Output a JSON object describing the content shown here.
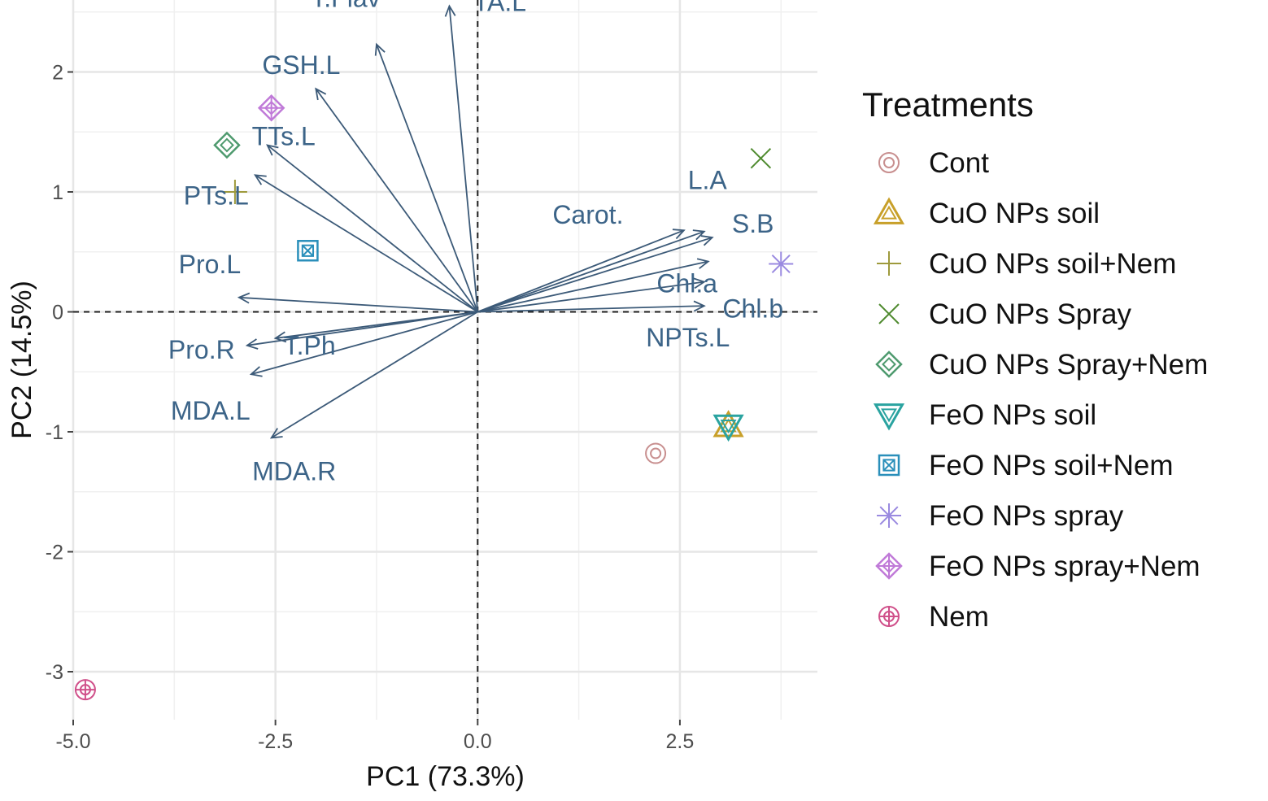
{
  "chart_data": {
    "type": "scatter",
    "subtype": "pca-biplot",
    "xlabel": "PC1 (73.3%)",
    "ylabel": "PC2 (14.5%)",
    "xlim": [
      -5.0,
      4.2
    ],
    "ylim": [
      -3.4,
      2.6
    ],
    "xticks": [
      -5.0,
      -2.5,
      0.0,
      2.5
    ],
    "xtick_labels": [
      "-5.0",
      "-2.5",
      "0.0",
      "2.5"
    ],
    "yticks": [
      -3,
      -2,
      -1,
      0,
      1,
      2
    ],
    "ytick_labels": [
      "-3",
      "-2",
      "-1",
      "0",
      "1",
      "2"
    ],
    "grid": true,
    "legend": {
      "title": "Treatments",
      "position": "right"
    },
    "series": [
      {
        "name": "Cont",
        "marker": "circle-dot",
        "color": "#c88f8f",
        "x": 2.2,
        "y": -1.18
      },
      {
        "name": "CuO NPs soil",
        "marker": "triangle-up",
        "color": "#c8a02a",
        "x": 3.1,
        "y": -0.95
      },
      {
        "name": "CuO NPs soil+Nem",
        "marker": "plus",
        "color": "#9e9a3c",
        "x": -3.0,
        "y": 1.0
      },
      {
        "name": "CuO NPs Spray",
        "marker": "cross",
        "color": "#4e8a2e",
        "x": 3.5,
        "y": 1.28
      },
      {
        "name": "CuO NPs Spray+Nem",
        "marker": "diamond",
        "color": "#4e9a6e",
        "x": -3.1,
        "y": 1.39
      },
      {
        "name": "FeO NPs soil",
        "marker": "triangle-down",
        "color": "#2aa3a0",
        "x": 3.1,
        "y": -0.95
      },
      {
        "name": "FeO NPs soil+Nem",
        "marker": "square-cross",
        "color": "#2a8fba",
        "x": -2.1,
        "y": 0.51
      },
      {
        "name": "FeO NPs spray",
        "marker": "asterisk",
        "color": "#9a8ae0",
        "x": 3.75,
        "y": 0.4
      },
      {
        "name": "FeO NPs spray+Nem",
        "marker": "diamond-plus",
        "color": "#c07ad8",
        "x": -2.55,
        "y": 1.7
      },
      {
        "name": "Nem",
        "marker": "circle-plus",
        "color": "#d0508a",
        "x": -4.85,
        "y": -3.15
      }
    ],
    "loadings": [
      {
        "name": "TA.L",
        "x": -0.35,
        "y": 2.55
      },
      {
        "name": "T.Flav",
        "x": -1.25,
        "y": 2.23
      },
      {
        "name": "GSH.L",
        "x": -2.0,
        "y": 1.86
      },
      {
        "name": "TTs.L",
        "x": -2.6,
        "y": 1.39
      },
      {
        "name": "PTs.L",
        "x": -2.75,
        "y": 1.14
      },
      {
        "name": "Pro.L",
        "x": -2.95,
        "y": 0.12
      },
      {
        "name": "T.Ph",
        "x": -2.5,
        "y": -0.22
      },
      {
        "name": "Pro.R",
        "x": -2.85,
        "y": -0.28
      },
      {
        "name": "MDA.L",
        "x": -2.8,
        "y": -0.52
      },
      {
        "name": "MDA.R",
        "x": -2.55,
        "y": -1.05
      },
      {
        "name": "Carot.",
        "x": 2.55,
        "y": 0.68
      },
      {
        "name": "L.A",
        "x": 2.8,
        "y": 0.67
      },
      {
        "name": "S.B",
        "x": 2.9,
        "y": 0.62
      },
      {
        "name": "Chl.a",
        "x": 2.85,
        "y": 0.42
      },
      {
        "name": "Chl.b",
        "x": 2.8,
        "y": 0.25
      },
      {
        "name": "NPTs.L",
        "x": 2.8,
        "y": 0.05
      }
    ],
    "loading_color": "#3c5a78",
    "loading_label_color": "#3c6488"
  }
}
